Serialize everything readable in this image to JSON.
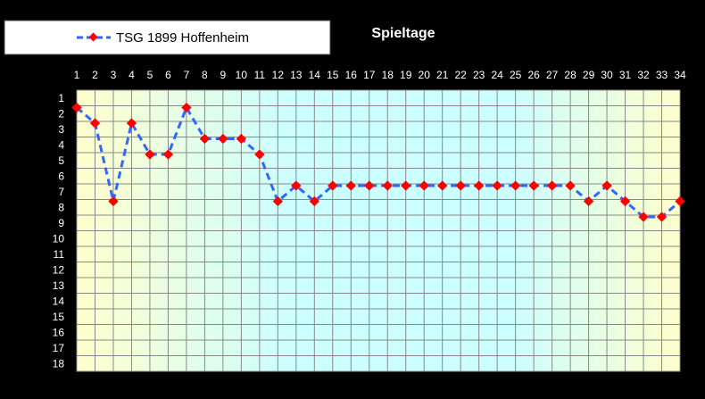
{
  "chart_data": {
    "type": "line",
    "title": "Spieltage",
    "x": [
      1,
      2,
      3,
      4,
      5,
      6,
      7,
      8,
      9,
      10,
      11,
      12,
      13,
      14,
      15,
      16,
      17,
      18,
      19,
      20,
      21,
      22,
      23,
      24,
      25,
      26,
      27,
      28,
      29,
      30,
      31,
      32,
      33,
      34
    ],
    "series": [
      {
        "name": "TSG 1899 Hoffenheim",
        "values": [
          2,
          3,
          8,
          3,
          5,
          5,
          2,
          4,
          4,
          4,
          5,
          8,
          7,
          8,
          7,
          7,
          7,
          7,
          7,
          7,
          7,
          7,
          7,
          7,
          7,
          7,
          7,
          7,
          8,
          7,
          8,
          9,
          9,
          8
        ]
      }
    ],
    "xlim": [
      1,
      34
    ],
    "ylim": [
      1,
      18
    ],
    "y_inverted": true,
    "x_axis_position": "top",
    "grid": true,
    "legend_position": "top-left",
    "colors": {
      "line": "#3366ff",
      "marker": "#ff0000",
      "background": "#000000",
      "grid": "#888888",
      "plot_left": "#ffffcc",
      "plot_mid": "#ccffff"
    }
  }
}
